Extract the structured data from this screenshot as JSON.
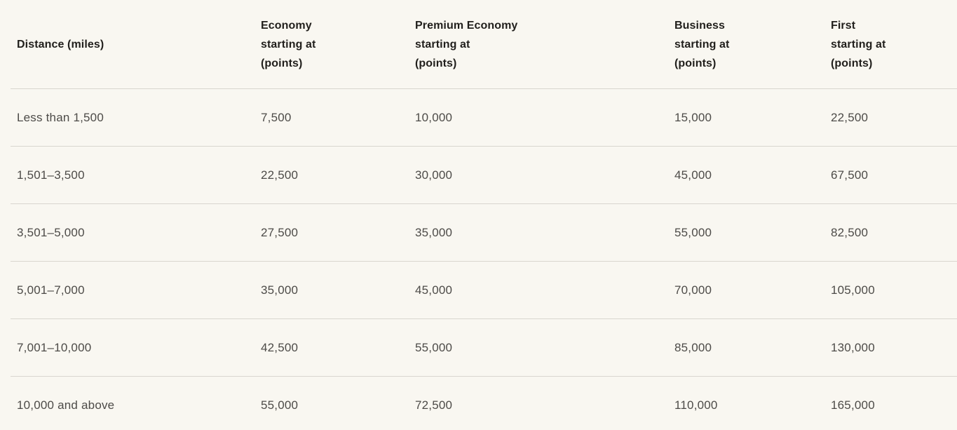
{
  "table": {
    "name": "award-points-by-distance",
    "columns": [
      {
        "key": "distance",
        "label": "Distance (miles)"
      },
      {
        "key": "economy",
        "label": "Economy\nstarting at\n(points)"
      },
      {
        "key": "premium_economy",
        "label": "Premium Economy\nstarting at\n(points)"
      },
      {
        "key": "business",
        "label": "Business\nstarting at\n(points)"
      },
      {
        "key": "first",
        "label": "First\nstarting at\n(points)"
      }
    ],
    "rows": [
      {
        "distance": "Less than 1,500",
        "economy": "7,500",
        "premium_economy": "10,000",
        "business": "15,000",
        "first": "22,500"
      },
      {
        "distance": "1,501–3,500",
        "economy": "22,500",
        "premium_economy": "30,000",
        "business": "45,000",
        "first": "67,500"
      },
      {
        "distance": "3,501–5,000",
        "economy": "27,500",
        "premium_economy": "35,000",
        "business": "55,000",
        "first": "82,500"
      },
      {
        "distance": "5,001–7,000",
        "economy": "35,000",
        "premium_economy": "45,000",
        "business": "70,000",
        "first": "105,000"
      },
      {
        "distance": "7,001–10,000",
        "economy": "42,500",
        "premium_economy": "55,000",
        "business": "85,000",
        "first": "130,000"
      },
      {
        "distance": "10,000 and above",
        "economy": "55,000",
        "premium_economy": "72,500",
        "business": "110,000",
        "first": "165,000"
      }
    ]
  },
  "colors": {
    "background": "#f9f7f1",
    "divider": "#d9d6cf",
    "header_text": "#211f1c",
    "body_text": "#4d4b48"
  }
}
